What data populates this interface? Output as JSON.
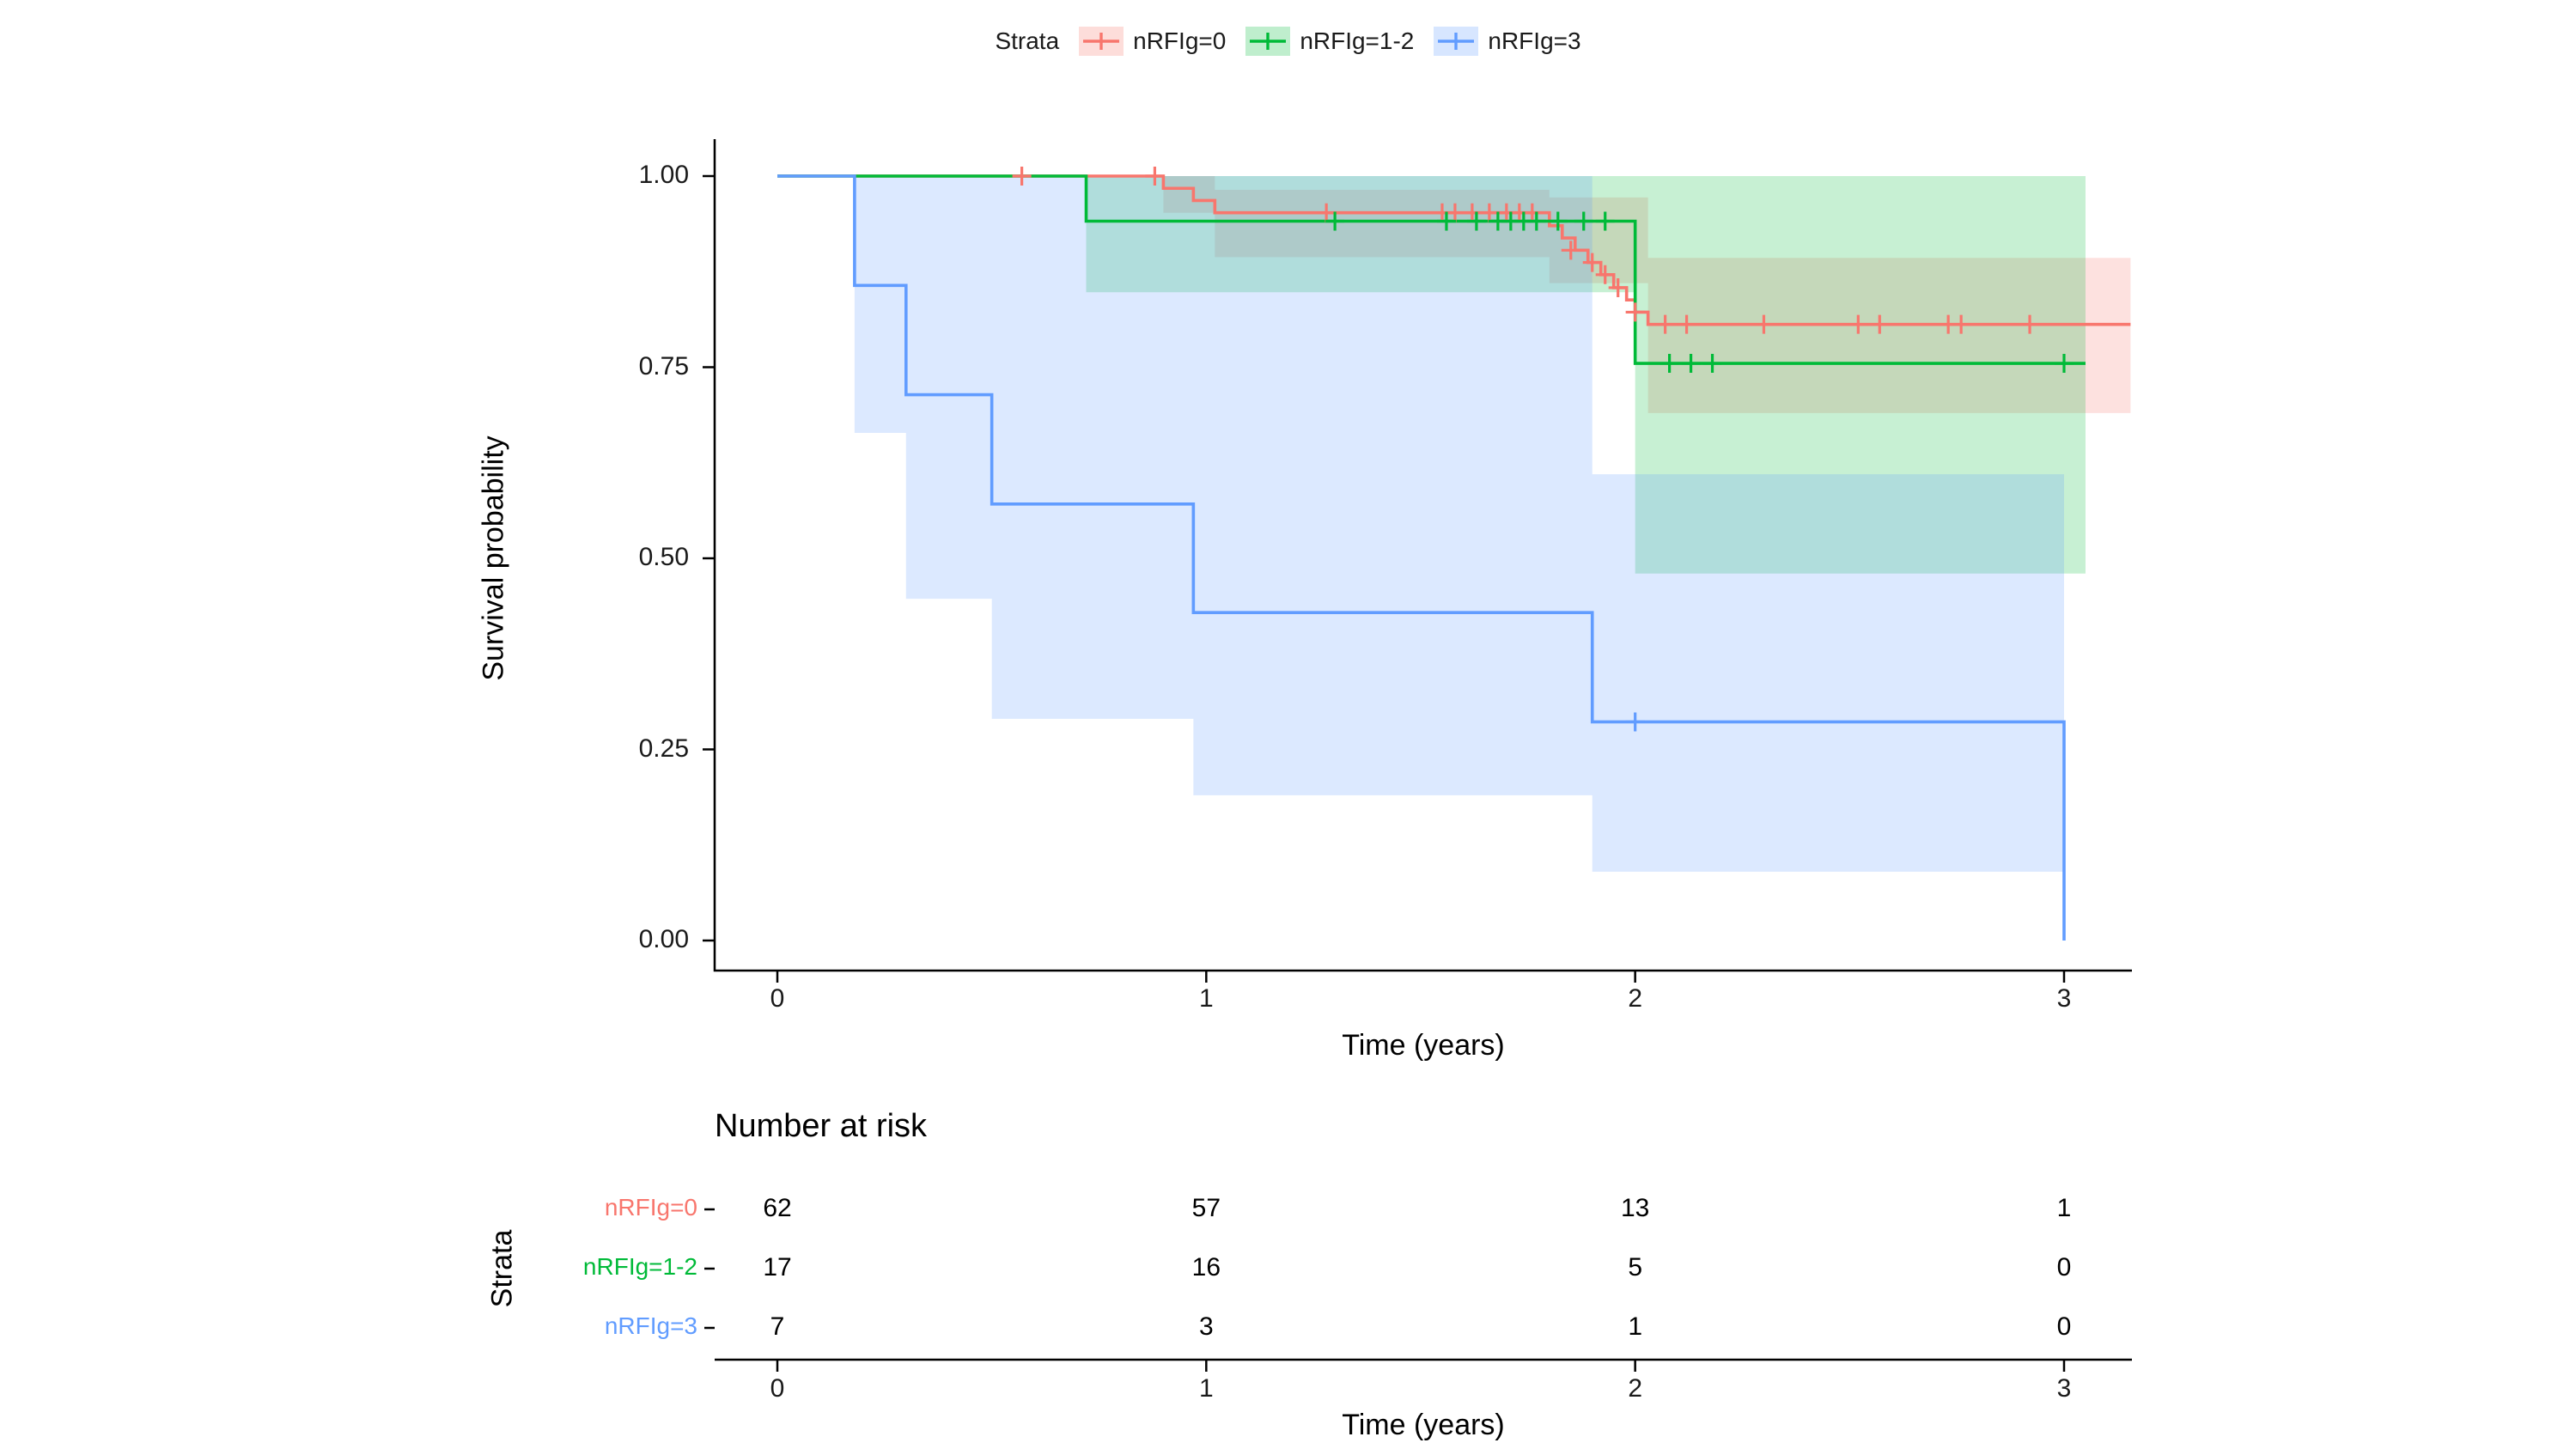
{
  "legend": {
    "title": "Strata",
    "items": [
      {
        "label": "nRFIg=0",
        "color": "#F8766D"
      },
      {
        "label": "nRFIg=1-2",
        "color": "#00BA38"
      },
      {
        "label": "nRFIg=3",
        "color": "#619CFF"
      }
    ]
  },
  "chart_data": {
    "type": "line",
    "subtype": "kaplan-meier-step",
    "title": "",
    "xlabel": "Time (years)",
    "ylabel": "Survival probability",
    "xlim": [
      0,
      3.15
    ],
    "ylim": [
      0,
      1
    ],
    "x_ticks": {
      "values": [
        0,
        1,
        2,
        3
      ],
      "labels": [
        "0",
        "1",
        "2",
        "3"
      ]
    },
    "y_ticks": {
      "values": [
        0,
        0.25,
        0.5,
        0.75,
        1
      ],
      "labels": [
        "0.00",
        "0.25",
        "0.50",
        "0.75",
        "1.00"
      ]
    },
    "legend_position": "top",
    "grid": false,
    "series": [
      {
        "name": "nRFIg=0",
        "color": "#F8766D",
        "points": [
          [
            0,
            1.0
          ],
          [
            0.9,
            0.984
          ],
          [
            0.97,
            0.968
          ],
          [
            1.02,
            0.952
          ],
          [
            1.8,
            0.935
          ],
          [
            1.83,
            0.919
          ],
          [
            1.86,
            0.903
          ],
          [
            1.89,
            0.887
          ],
          [
            1.92,
            0.871
          ],
          [
            1.95,
            0.854
          ],
          [
            1.98,
            0.838
          ],
          [
            2.0,
            0.822
          ],
          [
            2.03,
            0.806
          ],
          [
            3.155,
            0.806
          ]
        ],
        "censors": [
          [
            0.57,
            1.0
          ],
          [
            0.88,
            1.0
          ],
          [
            1.28,
            0.952
          ],
          [
            1.55,
            0.952
          ],
          [
            1.58,
            0.952
          ],
          [
            1.62,
            0.952
          ],
          [
            1.66,
            0.952
          ],
          [
            1.7,
            0.952
          ],
          [
            1.73,
            0.952
          ],
          [
            1.76,
            0.952
          ],
          [
            1.85,
            0.903
          ],
          [
            1.9,
            0.887
          ],
          [
            1.93,
            0.871
          ],
          [
            1.96,
            0.854
          ],
          [
            2.0,
            0.822
          ],
          [
            2.07,
            0.806
          ],
          [
            2.12,
            0.806
          ],
          [
            2.3,
            0.806
          ],
          [
            2.52,
            0.806
          ],
          [
            2.57,
            0.806
          ],
          [
            2.73,
            0.806
          ],
          [
            2.76,
            0.806
          ],
          [
            2.92,
            0.806
          ]
        ],
        "ci": [
          {
            "t": 0,
            "low": 1.0,
            "high": 1.0
          },
          {
            "t": 0.9,
            "low": 0.952,
            "high": 1.0
          },
          {
            "t": 1.02,
            "low": 0.894,
            "high": 0.982
          },
          {
            "t": 1.8,
            "low": 0.86,
            "high": 0.972
          },
          {
            "t": 2.03,
            "low": 0.69,
            "high": 0.893
          },
          {
            "t": 3.155
          }
        ]
      },
      {
        "name": "nRFIg=1-2",
        "color": "#00BA38",
        "points": [
          [
            0,
            1.0
          ],
          [
            0.72,
            0.941
          ],
          [
            2.0,
            0.755
          ],
          [
            3.05,
            0.755
          ]
        ],
        "censors": [
          [
            1.3,
            0.941
          ],
          [
            1.56,
            0.941
          ],
          [
            1.63,
            0.941
          ],
          [
            1.68,
            0.941
          ],
          [
            1.71,
            0.941
          ],
          [
            1.74,
            0.941
          ],
          [
            1.77,
            0.941
          ],
          [
            1.82,
            0.941
          ],
          [
            1.88,
            0.941
          ],
          [
            1.93,
            0.941
          ],
          [
            2.08,
            0.755
          ],
          [
            2.13,
            0.755
          ],
          [
            2.18,
            0.755
          ],
          [
            3.0,
            0.755
          ]
        ],
        "ci": [
          {
            "t": 0,
            "low": 1.0,
            "high": 1.0
          },
          {
            "t": 0.72,
            "low": 0.848,
            "high": 1.0
          },
          {
            "t": 2.0,
            "low": 0.48,
            "high": 1.0
          },
          {
            "t": 3.05
          }
        ]
      },
      {
        "name": "nRFIg=3",
        "color": "#619CFF",
        "points": [
          [
            0,
            1.0
          ],
          [
            0.18,
            0.857
          ],
          [
            0.3,
            0.714
          ],
          [
            0.5,
            0.571
          ],
          [
            0.97,
            0.429
          ],
          [
            1.9,
            0.286
          ],
          [
            3.0,
            0.0
          ]
        ],
        "censors": [
          [
            2.0,
            0.286
          ]
        ],
        "ci": [
          {
            "t": 0,
            "low": 1.0,
            "high": 1.0
          },
          {
            "t": 0.18,
            "low": 0.664,
            "high": 1.0
          },
          {
            "t": 0.3,
            "low": 0.447,
            "high": 1.0
          },
          {
            "t": 0.5,
            "low": 0.29,
            "high": 1.0
          },
          {
            "t": 0.97,
            "low": 0.19,
            "high": 1.0
          },
          {
            "t": 1.9,
            "low": 0.09,
            "high": 0.61
          },
          {
            "t": 3.0
          }
        ]
      }
    ]
  },
  "risk_table": {
    "title": "Number at risk",
    "ylabel": "Strata",
    "xlabel": "Time (years)",
    "x_ticks": {
      "values": [
        0,
        1,
        2,
        3
      ],
      "labels": [
        "0",
        "1",
        "2",
        "3"
      ]
    },
    "rows": [
      {
        "label": "nRFIg=0",
        "color": "#F8766D",
        "values": [
          "62",
          "57",
          "13",
          "1"
        ]
      },
      {
        "label": "nRFIg=1-2",
        "color": "#00BA38",
        "values": [
          "17",
          "16",
          "5",
          "0"
        ]
      },
      {
        "label": "nRFIg=3",
        "color": "#619CFF",
        "values": [
          "7",
          "3",
          "1",
          "0"
        ]
      }
    ]
  }
}
